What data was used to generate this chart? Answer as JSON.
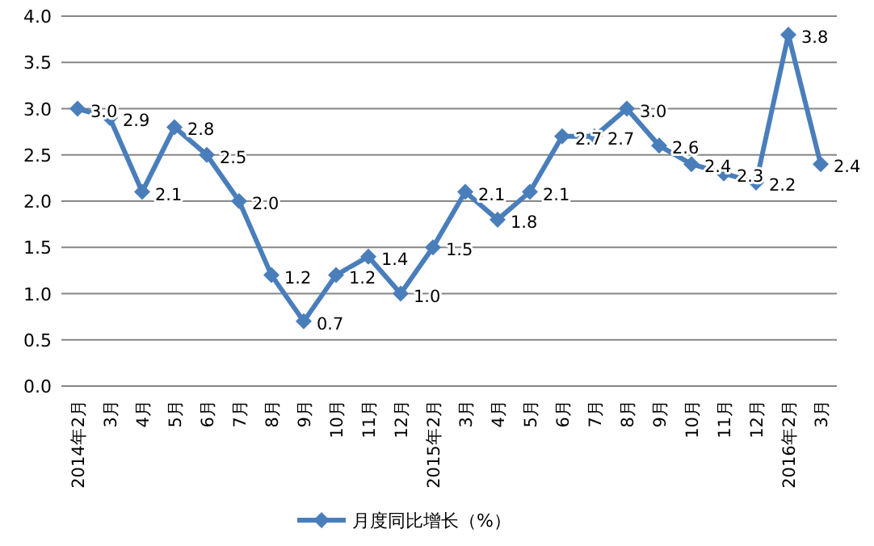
{
  "chart_data": {
    "type": "line",
    "categories": [
      "2014年2月",
      "3月",
      "4月",
      "5月",
      "6月",
      "7月",
      "8月",
      "9月",
      "10月",
      "11月",
      "12月",
      "2015年2月",
      "3月",
      "4月",
      "5月",
      "6月",
      "7月",
      "8月",
      "9月",
      "10月",
      "11月",
      "12月",
      "2016年2月",
      "3月"
    ],
    "series": [
      {
        "name": "月度同比增长（%）",
        "color": "#4a7ebb",
        "values": [
          3.0,
          2.9,
          2.1,
          2.8,
          2.5,
          2.0,
          1.2,
          0.7,
          1.2,
          1.4,
          1.0,
          1.5,
          2.1,
          1.8,
          2.1,
          2.7,
          2.7,
          3.0,
          2.6,
          2.4,
          2.3,
          2.2,
          3.8,
          2.4
        ],
        "value_labels": [
          "3.0",
          "2.9",
          "2.1",
          "2.8",
          "2.5",
          "2.0",
          "1.2",
          "0.7",
          "1.2",
          "1.4",
          "1.0",
          "1.5",
          "2.1",
          "1.8",
          "2.1",
          "2.7",
          "2.7",
          "3.0",
          "2.6",
          "2.4",
          "2.3",
          "2.2",
          "3.8",
          "2.4"
        ]
      }
    ],
    "ylim": [
      0,
      4
    ],
    "yticks": [
      {
        "value": 0,
        "label": "0.0"
      },
      {
        "value": 0.5,
        "label": "0.5"
      },
      {
        "value": 1,
        "label": "1.0"
      },
      {
        "value": 1.5,
        "label": "1.5"
      },
      {
        "value": 2,
        "label": "2.0"
      },
      {
        "value": 2.5,
        "label": "2.5"
      },
      {
        "value": 3,
        "label": "3.0"
      },
      {
        "value": 3.5,
        "label": "3.5"
      },
      {
        "value": 4,
        "label": "4.0"
      }
    ],
    "grid": "y",
    "legend": "bottom",
    "marker": "diamond",
    "line_style": "solid"
  }
}
